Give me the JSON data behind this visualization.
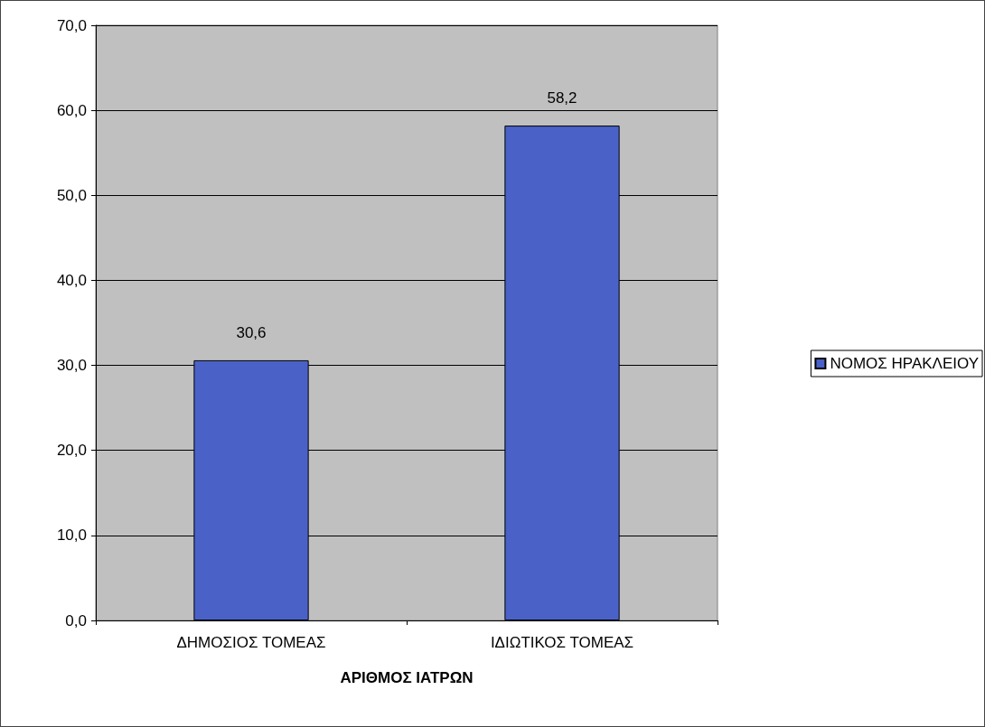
{
  "chart_data": {
    "type": "bar",
    "xlabel": "ΑΡΙΘΜΟΣ ΙΑΤΡΩΝ",
    "categories": [
      "ΔΗΜΟΣΙΟΣ ΤΟΜΕΑΣ",
      "ΙΔΙΩΤΙΚΟΣ ΤΟΜΕΑΣ"
    ],
    "series": [
      {
        "name": "ΝΟΜΟΣ ΗΡΑΚΛΕΙΟΥ",
        "color": "#4a62c8",
        "values": [
          30.6,
          58.2
        ],
        "value_labels": [
          "30,6",
          "58,2"
        ]
      }
    ],
    "ylim": [
      0,
      70
    ],
    "yticks": [
      {
        "value": 0,
        "label": "0,0"
      },
      {
        "value": 10,
        "label": "10,0"
      },
      {
        "value": 20,
        "label": "20,0"
      },
      {
        "value": 30,
        "label": "30,0"
      },
      {
        "value": 40,
        "label": "40,0"
      },
      {
        "value": 50,
        "label": "50,0"
      },
      {
        "value": 60,
        "label": "60,0"
      },
      {
        "value": 70,
        "label": "70,0"
      }
    ],
    "grid": "y",
    "legend": "right"
  }
}
